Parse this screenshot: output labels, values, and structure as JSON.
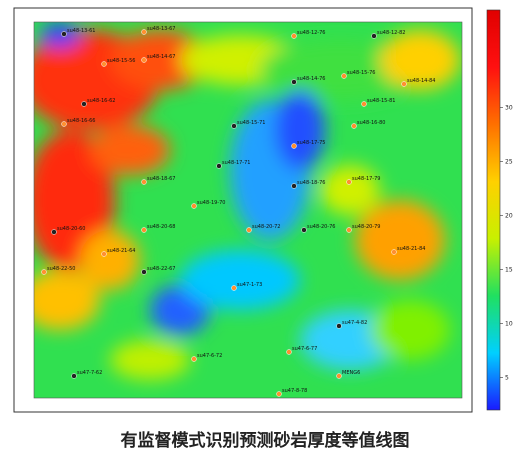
{
  "caption": "有监督模式识别预测砂岩厚度等值线图",
  "colorbar": {
    "range": [
      2,
      39
    ],
    "ticks": [
      5,
      10,
      15,
      20,
      25,
      30
    ],
    "colors": [
      "#1a1aff",
      "#00d0ff",
      "#20e060",
      "#c8f000",
      "#ffd000",
      "#ff7000",
      "#ff1010",
      "#e00000"
    ]
  },
  "wells": [
    "su48-13-61",
    "su48-13-67",
    "su48-12-76",
    "su48-12-82",
    "su48-14-67",
    "su48-15-56",
    "su48-14-76",
    "su48-15-76",
    "su48-14-84",
    "su48-16-62",
    "su48-15-81",
    "su48-16-66",
    "su48-15-71",
    "su48-17-75",
    "su48-16-80",
    "su48-17-71",
    "su48-18-67",
    "su48-17-79",
    "su48-18-76",
    "su48-19-70",
    "su48-20-72",
    "su48-20-76",
    "su48-20-79",
    "su48-20-68",
    "su48-20-60",
    "su48-21-64",
    "su48-22-50",
    "su48-22-67",
    "su48-21-84",
    "su47-1-73",
    "su47-4-82",
    "su47-6-72",
    "su47-6-77",
    "su47-7-62",
    "su47-8-78",
    "MENG6"
  ]
}
